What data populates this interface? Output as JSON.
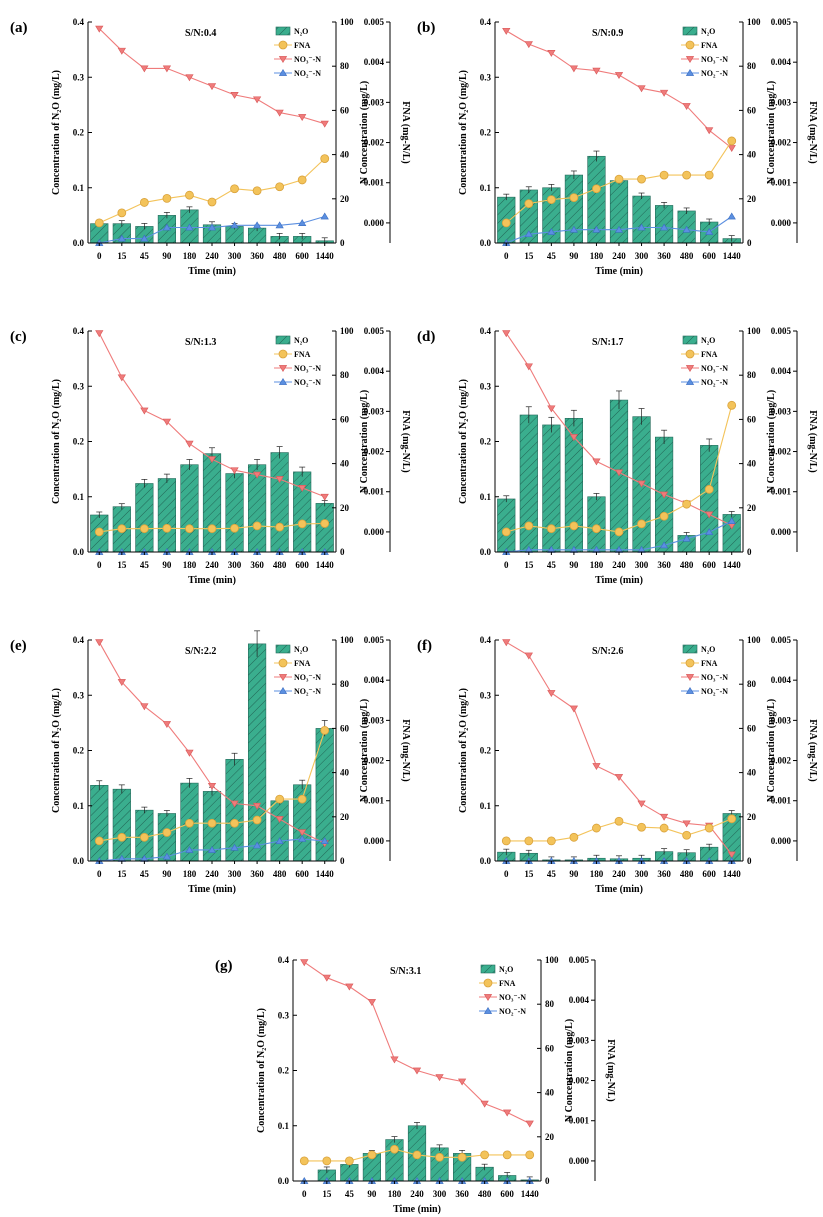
{
  "figure": {
    "categories": [
      "0",
      "15",
      "45",
      "90",
      "180",
      "240",
      "300",
      "360",
      "480",
      "600",
      "1440"
    ],
    "left_axis": {
      "label": "Concentration of N₂O (mg/L)",
      "ylim": [
        0,
        0.4
      ],
      "ticks": [
        "0.0",
        "0.1",
        "0.2",
        "0.3",
        "0.4"
      ]
    },
    "right_axis": {
      "label": "N Concentration (mg/L)",
      "ylim": [
        0,
        100
      ],
      "ticks": [
        "0",
        "20",
        "40",
        "60",
        "80",
        "100"
      ]
    },
    "fna_axis": {
      "label": "FNA (mg-N/L)",
      "ylim": [
        -0.0005,
        0.005
      ],
      "ticks": [
        "0.000",
        "0.001",
        "0.002",
        "0.003",
        "0.004",
        "0.005"
      ]
    },
    "x_axis": {
      "label": "Time (min)"
    },
    "legend": [
      "N₂O",
      "FNA",
      "NO₃⁻-N",
      "NO₂⁻-N"
    ],
    "colors": {
      "bar": "#3aae8e",
      "bar_edge": "#23695a",
      "fna": "#f3c35a",
      "fna_edge": "#d9a23c",
      "no3": "#ef7b7b",
      "no2": "#5b8fe0"
    }
  },
  "chart_data": [
    {
      "type": "bar",
      "panel_label": "(a)",
      "sn_label": "S/N:0.4",
      "series": [
        {
          "name": "N₂O",
          "axis": "left",
          "values": [
            0.035,
            0.035,
            0.03,
            0.05,
            0.06,
            0.033,
            0.03,
            0.027,
            0.012,
            0.012,
            0.004
          ]
        },
        {
          "name": "FNA",
          "axis": "fna",
          "values": [
            0.0,
            0.00025,
            0.00051,
            0.00061,
            0.00069,
            0.00052,
            0.00085,
            0.0008,
            0.0009,
            0.00107,
            0.0016
          ]
        },
        {
          "name": "NO₃⁻-N",
          "axis": "right",
          "values": [
            97,
            87,
            79,
            79,
            75,
            71,
            67,
            65,
            59,
            57,
            54
          ]
        },
        {
          "name": "NO₂⁻-N",
          "axis": "right",
          "values": [
            0,
            2,
            2,
            7,
            7,
            7,
            8,
            8,
            8,
            9,
            12
          ]
        }
      ]
    },
    {
      "type": "bar",
      "panel_label": "(b)",
      "sn_label": "S/N:0.9",
      "series": [
        {
          "name": "N₂O",
          "axis": "left",
          "values": [
            0.083,
            0.096,
            0.1,
            0.123,
            0.157,
            0.113,
            0.085,
            0.068,
            0.058,
            0.038,
            0.008
          ]
        },
        {
          "name": "FNA",
          "axis": "fna",
          "values": [
            0.0,
            0.00048,
            0.00058,
            0.00063,
            0.00085,
            0.00109,
            0.00109,
            0.00119,
            0.00119,
            0.00119,
            0.00204
          ]
        },
        {
          "name": "NO₃⁻-N",
          "axis": "right",
          "values": [
            96,
            90,
            86,
            79,
            78,
            76,
            70,
            68,
            62,
            51,
            43
          ]
        },
        {
          "name": "NO₂⁻-N",
          "axis": "right",
          "values": [
            0,
            4,
            5,
            6,
            6,
            6,
            7,
            7,
            6,
            5,
            12
          ]
        }
      ]
    },
    {
      "type": "bar",
      "panel_label": "(c)",
      "sn_label": "S/N:1.3",
      "series": [
        {
          "name": "N₂O",
          "axis": "left",
          "values": [
            0.067,
            0.082,
            0.124,
            0.133,
            0.158,
            0.178,
            0.142,
            0.158,
            0.18,
            0.145,
            0.088
          ]
        },
        {
          "name": "FNA",
          "axis": "fna",
          "values": [
            0.0,
            8e-05,
            8e-05,
            9e-05,
            8e-05,
            8e-05,
            9e-05,
            0.00015,
            0.00012,
            0.0002,
            0.00021
          ]
        },
        {
          "name": "NO₃⁻-N",
          "axis": "right",
          "values": [
            99,
            79,
            64,
            59,
            49,
            42,
            37,
            35,
            33,
            29,
            25
          ]
        },
        {
          "name": "NO₂⁻-N",
          "axis": "right",
          "values": [
            0,
            0,
            0,
            0,
            0,
            0,
            0,
            0,
            0,
            0,
            0
          ]
        }
      ]
    },
    {
      "type": "bar",
      "panel_label": "(d)",
      "sn_label": "S/N:1.7",
      "series": [
        {
          "name": "N₂O",
          "axis": "left",
          "values": [
            0.096,
            0.248,
            0.23,
            0.242,
            0.1,
            0.275,
            0.245,
            0.208,
            0.03,
            0.193,
            0.068
          ]
        },
        {
          "name": "FNA",
          "axis": "fna",
          "values": [
            0.0,
            0.00015,
            8e-05,
            0.00015,
            8e-05,
            0.0,
            0.0002,
            0.00039,
            0.00069,
            0.00106,
            0.00315
          ]
        },
        {
          "name": "NO₃⁻-N",
          "axis": "right",
          "values": [
            99,
            84,
            65,
            52,
            41,
            36,
            31,
            26,
            22,
            17,
            12
          ]
        },
        {
          "name": "NO₂⁻-N",
          "axis": "right",
          "values": [
            0,
            1,
            1,
            1,
            1,
            1,
            1,
            3,
            6,
            9,
            14
          ]
        }
      ]
    },
    {
      "type": "bar",
      "panel_label": "(e)",
      "sn_label": "S/N:2.2",
      "series": [
        {
          "name": "N₂O",
          "axis": "left",
          "values": [
            0.137,
            0.13,
            0.092,
            0.086,
            0.141,
            0.126,
            0.184,
            0.393,
            0.109,
            0.138,
            0.24
          ]
        },
        {
          "name": "FNA",
          "axis": "fna",
          "values": [
            0.0,
            9e-05,
            9e-05,
            0.00021,
            0.00044,
            0.00044,
            0.00044,
            0.00052,
            0.00104,
            0.00104,
            0.00275
          ]
        },
        {
          "name": "NO₃⁻-N",
          "axis": "right",
          "values": [
            99,
            81,
            70,
            62,
            49,
            34,
            26,
            25,
            19,
            13,
            8
          ]
        },
        {
          "name": "NO₂⁻-N",
          "axis": "right",
          "values": [
            0,
            1,
            1,
            2,
            5,
            5,
            6,
            7,
            9,
            10,
            9
          ]
        }
      ]
    },
    {
      "type": "bar",
      "panel_label": "(f)",
      "sn_label": "S/N:2.6",
      "series": [
        {
          "name": "N₂O",
          "axis": "left",
          "values": [
            0.016,
            0.014,
            0.002,
            0.002,
            0.005,
            0.004,
            0.005,
            0.017,
            0.015,
            0.025,
            0.086
          ]
        },
        {
          "name": "FNA",
          "axis": "fna",
          "values": [
            0.0,
            0.0,
            0.0,
            9e-05,
            0.00032,
            0.00049,
            0.00034,
            0.00032,
            0.00014,
            0.00032,
            0.00055
          ]
        },
        {
          "name": "NO₃⁻-N",
          "axis": "right",
          "values": [
            99,
            93,
            76,
            69,
            43,
            38,
            26,
            20,
            17,
            16,
            3
          ]
        },
        {
          "name": "NO₂⁻-N",
          "axis": "right",
          "values": [
            0,
            0,
            0,
            0,
            0,
            0,
            0,
            0,
            0,
            0,
            0
          ]
        }
      ]
    },
    {
      "type": "bar",
      "panel_label": "(g)",
      "sn_label": "S/N:3.1",
      "series": [
        {
          "name": "N₂O",
          "axis": "left",
          "values": [
            0.0,
            0.02,
            0.03,
            0.05,
            0.075,
            0.1,
            0.06,
            0.05,
            0.025,
            0.01,
            0.002
          ]
        },
        {
          "name": "FNA",
          "axis": "fna",
          "values": [
            0.0,
            0.0,
            0.0,
            0.00015,
            0.00029,
            0.00015,
            9e-05,
            9e-05,
            0.00015,
            0.00015,
            0.00015
          ]
        },
        {
          "name": "NO₃⁻-N",
          "axis": "right",
          "values": [
            99,
            92,
            88,
            81,
            55,
            50,
            47,
            45,
            35,
            31,
            26
          ]
        },
        {
          "name": "NO₂⁻-N",
          "axis": "right",
          "values": [
            0,
            0,
            0,
            0,
            0,
            0,
            0,
            0,
            0,
            0,
            0
          ]
        }
      ]
    }
  ]
}
